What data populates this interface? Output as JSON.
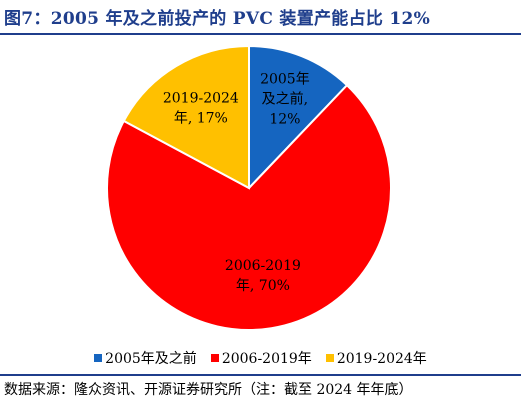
{
  "header": {
    "title": "图7：2005 年及之前投产的 PVC 装置产能占比 12%"
  },
  "chart_data": {
    "type": "pie",
    "categories": [
      "2005年及之前",
      "2006-2019年",
      "2019-2024年"
    ],
    "values": [
      12,
      70,
      17
    ],
    "colors": [
      "#1565c0",
      "#ff0000",
      "#ffc000"
    ],
    "data_labels": [
      [
        "2005年",
        "及之前,",
        "12%"
      ],
      [
        "2006-2019",
        "年, 70%"
      ],
      [
        "2019-2024",
        "年, 17%"
      ]
    ],
    "label_colors": [
      "#000000",
      "#000000",
      "#000000"
    ],
    "legend": "bottom",
    "start_angle_deg": 0,
    "direction": "clockwise"
  },
  "legend": {
    "items": [
      {
        "label": "2005年及之前",
        "color": "#1565c0"
      },
      {
        "label": "2006-2019年",
        "color": "#ff0000"
      },
      {
        "label": "2019-2024年",
        "color": "#ffc000"
      }
    ]
  },
  "footer": {
    "source": "数据来源：隆众资讯、开源证券研究所（注：截至 2024 年年底）"
  }
}
